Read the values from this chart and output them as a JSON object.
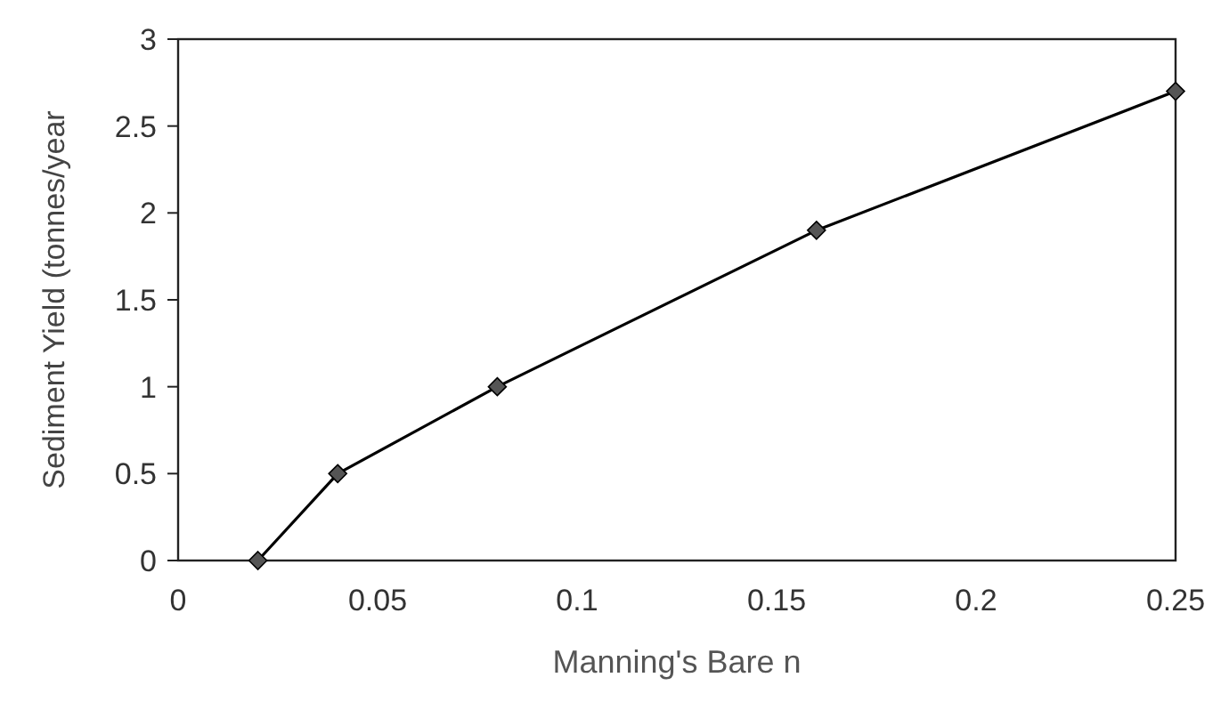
{
  "chart_data": {
    "type": "line",
    "xlabel": "Manning's Bare n",
    "ylabel": "Sediment Yield (tonnes/year",
    "x": [
      0.02,
      0.04,
      0.08,
      0.16,
      0.25
    ],
    "series": [
      {
        "color": "#000000",
        "values": [
          0,
          0.5,
          1,
          1.9,
          2.7
        ]
      }
    ],
    "xlim": [
      0,
      0.25
    ],
    "xticks": [
      0,
      0.05,
      0.1,
      0.15,
      0.2,
      0.25
    ],
    "ylim": [
      0,
      3
    ],
    "yticks": [
      0,
      0.5,
      1,
      1.5,
      2,
      2.5,
      3
    ],
    "grid": false,
    "marker": "diamond",
    "line_style": "solid"
  }
}
